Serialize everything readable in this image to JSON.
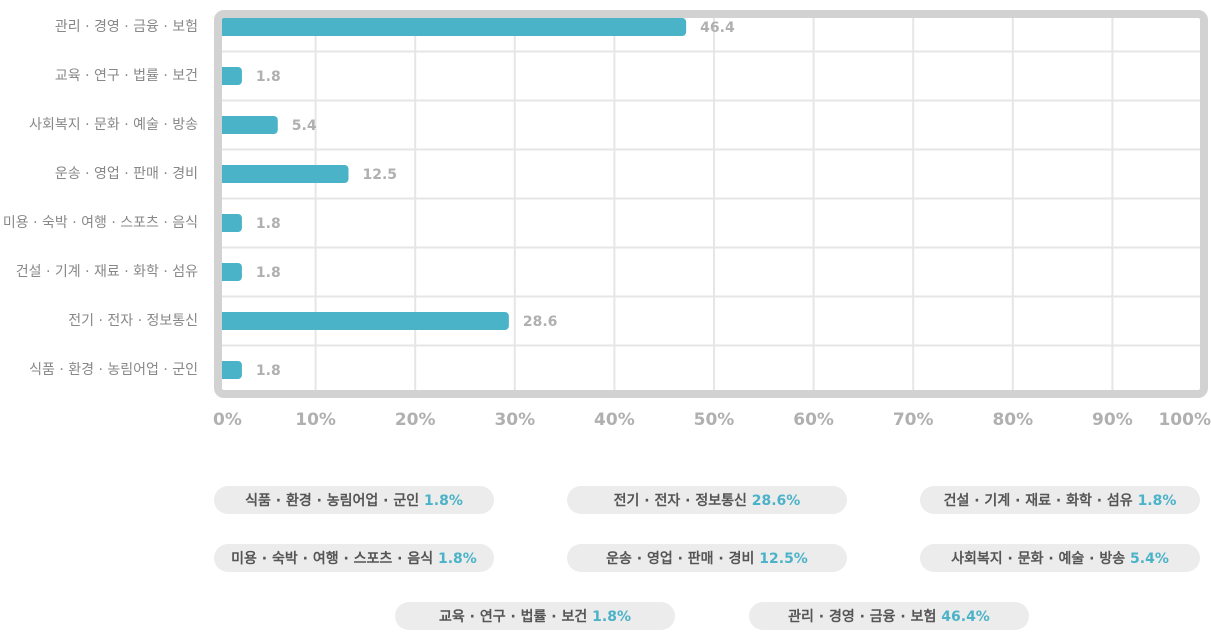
{
  "chart_data": {
    "type": "bar",
    "orientation": "horizontal",
    "categories": [
      "관리 · 경영 · 금융 · 보험",
      "교육 · 연구 · 법률 · 보건",
      "사회복지 · 문화 · 예술 · 방송",
      "운송 · 영업 · 판매 · 경비",
      "미용 · 숙박 · 여행 · 스포츠 · 음식",
      "건설 · 기계 · 재료 · 화학 · 섬유",
      "전기 · 전자 · 정보통신",
      "식품 · 환경 · 농림어업 · 군인"
    ],
    "values": [
      46.4,
      1.8,
      5.4,
      12.5,
      1.8,
      1.8,
      28.6,
      1.8
    ],
    "value_labels": [
      "46.4%",
      "1.8%",
      "5.4%",
      "12.5%",
      "1.8%",
      "1.8%",
      "28.6%",
      "1.8%"
    ],
    "color": "#4bb3c8",
    "xlim": [
      0,
      100
    ],
    "xticks": [
      {
        "value": 0,
        "label": "0%"
      },
      {
        "value": 10,
        "label": "10%"
      },
      {
        "value": 20,
        "label": "20%"
      },
      {
        "value": 30,
        "label": "30%"
      },
      {
        "value": 40,
        "label": "40%"
      },
      {
        "value": 50,
        "label": "50%"
      },
      {
        "value": 60,
        "label": "60%"
      },
      {
        "value": 70,
        "label": "70%"
      },
      {
        "value": 80,
        "label": "80%"
      },
      {
        "value": 90,
        "label": "90%"
      },
      {
        "value": 100,
        "label": "100%"
      }
    ],
    "grid": true
  }
}
